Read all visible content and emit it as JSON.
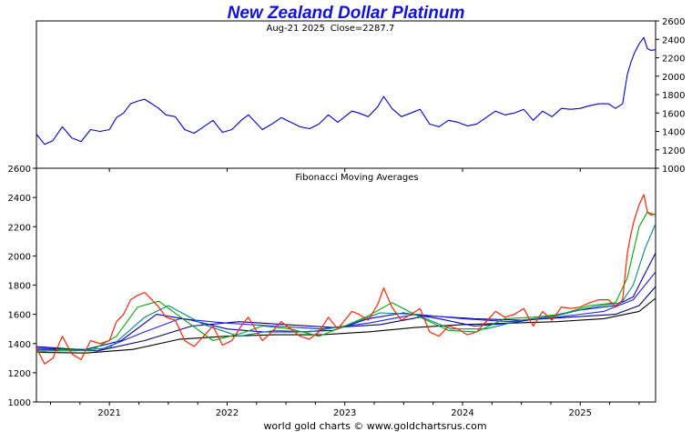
{
  "chart_data": [
    {
      "type": "line",
      "title": "New Zealand Dollar Platinum",
      "subtitle_date": "Aug-21  2025",
      "subtitle_close": "Close=2287.7",
      "x_ticks": [
        "2021",
        "2022",
        "2023",
        "2024",
        "2025"
      ],
      "x_range": [
        2020.38,
        2025.64
      ],
      "ylim": [
        1000,
        2600
      ],
      "yticks": [
        1000,
        1200,
        1400,
        1600,
        1800,
        2000,
        2200,
        2400,
        2600
      ],
      "y_axis_side": "right",
      "grid": false,
      "series": [
        {
          "color": "#0000dd",
          "x": [
            2020.38,
            2020.45,
            2020.52,
            2020.6,
            2020.68,
            2020.76,
            2020.84,
            2020.92,
            2021.0,
            2021.06,
            2021.12,
            2021.18,
            2021.24,
            2021.3,
            2021.36,
            2021.42,
            2021.48,
            2021.56,
            2021.64,
            2021.72,
            2021.8,
            2021.88,
            2021.96,
            2022.04,
            2022.12,
            2022.18,
            2022.24,
            2022.3,
            2022.38,
            2022.46,
            2022.54,
            2022.62,
            2022.7,
            2022.78,
            2022.86,
            2022.94,
            2023.0,
            2023.06,
            2023.12,
            2023.2,
            2023.28,
            2023.33,
            2023.4,
            2023.48,
            2023.56,
            2023.64,
            2023.72,
            2023.8,
            2023.88,
            2023.96,
            2024.04,
            2024.12,
            2024.2,
            2024.28,
            2024.36,
            2024.44,
            2024.52,
            2024.6,
            2024.68,
            2024.76,
            2024.84,
            2024.92,
            2025.0,
            2025.08,
            2025.16,
            2025.24,
            2025.3,
            2025.36,
            2025.4,
            2025.43,
            2025.46,
            2025.5,
            2025.54,
            2025.57,
            2025.6,
            2025.64
          ],
          "values": [
            1370,
            1260,
            1300,
            1450,
            1330,
            1290,
            1420,
            1400,
            1420,
            1550,
            1600,
            1700,
            1730,
            1750,
            1700,
            1650,
            1580,
            1560,
            1420,
            1380,
            1450,
            1520,
            1390,
            1420,
            1520,
            1580,
            1500,
            1420,
            1480,
            1550,
            1500,
            1450,
            1430,
            1480,
            1580,
            1500,
            1560,
            1620,
            1600,
            1560,
            1670,
            1780,
            1650,
            1560,
            1600,
            1640,
            1480,
            1450,
            1520,
            1500,
            1460,
            1480,
            1550,
            1620,
            1580,
            1600,
            1640,
            1520,
            1620,
            1560,
            1650,
            1640,
            1650,
            1680,
            1700,
            1700,
            1650,
            1700,
            2020,
            2150,
            2250,
            2350,
            2420,
            2300,
            2280,
            2288
          ]
        }
      ]
    },
    {
      "type": "line",
      "title": "Fibonacci Moving Averages",
      "ylim": [
        1000,
        2600
      ],
      "yticks": [
        1000,
        1200,
        1400,
        1600,
        1800,
        2000,
        2200,
        2400,
        2600
      ],
      "y_axis_side": "left",
      "x_ticks": [
        "2021",
        "2022",
        "2023",
        "2024",
        "2025"
      ],
      "grid": false,
      "series": [
        {
          "color": "#ff2200",
          "x": [
            2020.38,
            2020.45,
            2020.52,
            2020.6,
            2020.68,
            2020.76,
            2020.84,
            2020.92,
            2021.0,
            2021.06,
            2021.12,
            2021.18,
            2021.24,
            2021.3,
            2021.36,
            2021.42,
            2021.48,
            2021.56,
            2021.64,
            2021.72,
            2021.8,
            2021.88,
            2021.96,
            2022.04,
            2022.12,
            2022.18,
            2022.24,
            2022.3,
            2022.38,
            2022.46,
            2022.54,
            2022.62,
            2022.7,
            2022.78,
            2022.86,
            2022.94,
            2023.0,
            2023.06,
            2023.12,
            2023.2,
            2023.28,
            2023.33,
            2023.4,
            2023.48,
            2023.56,
            2023.64,
            2023.72,
            2023.8,
            2023.88,
            2023.96,
            2024.04,
            2024.12,
            2024.2,
            2024.28,
            2024.36,
            2024.44,
            2024.52,
            2024.6,
            2024.68,
            2024.76,
            2024.84,
            2024.92,
            2025.0,
            2025.08,
            2025.16,
            2025.24,
            2025.3,
            2025.36,
            2025.4,
            2025.43,
            2025.46,
            2025.5,
            2025.54,
            2025.57,
            2025.6,
            2025.64
          ],
          "values": [
            1370,
            1260,
            1300,
            1450,
            1330,
            1290,
            1420,
            1400,
            1420,
            1550,
            1600,
            1700,
            1730,
            1750,
            1700,
            1650,
            1580,
            1560,
            1420,
            1380,
            1450,
            1520,
            1390,
            1420,
            1520,
            1580,
            1500,
            1420,
            1480,
            1550,
            1500,
            1450,
            1430,
            1480,
            1580,
            1500,
            1560,
            1620,
            1600,
            1560,
            1670,
            1780,
            1650,
            1560,
            1600,
            1640,
            1480,
            1450,
            1520,
            1500,
            1460,
            1480,
            1550,
            1620,
            1580,
            1600,
            1640,
            1520,
            1620,
            1560,
            1650,
            1640,
            1650,
            1680,
            1700,
            1700,
            1650,
            1700,
            2020,
            2150,
            2250,
            2350,
            2420,
            2300,
            2280,
            2288
          ]
        },
        {
          "color": "#00aa00",
          "x": [
            2020.38,
            2020.6,
            2020.84,
            2021.06,
            2021.24,
            2021.42,
            2021.64,
            2021.88,
            2022.12,
            2022.3,
            2022.54,
            2022.78,
            2023.0,
            2023.2,
            2023.4,
            2023.64,
            2023.88,
            2024.12,
            2024.36,
            2024.6,
            2024.84,
            2025.08,
            2025.3,
            2025.4,
            2025.5,
            2025.57,
            2025.64
          ],
          "values": [
            1340,
            1360,
            1350,
            1450,
            1650,
            1690,
            1560,
            1420,
            1470,
            1520,
            1500,
            1450,
            1520,
            1590,
            1680,
            1580,
            1490,
            1480,
            1570,
            1580,
            1600,
            1660,
            1680,
            1850,
            2200,
            2300,
            2280
          ]
        },
        {
          "color": "#008888",
          "x": [
            2020.38,
            2020.7,
            2021.0,
            2021.3,
            2021.5,
            2021.8,
            2022.1,
            2022.4,
            2022.7,
            2023.0,
            2023.3,
            2023.6,
            2023.9,
            2024.2,
            2024.5,
            2024.8,
            2025.1,
            2025.35,
            2025.45,
            2025.55,
            2025.64
          ],
          "values": [
            1350,
            1350,
            1370,
            1580,
            1660,
            1530,
            1450,
            1490,
            1480,
            1520,
            1610,
            1600,
            1500,
            1500,
            1560,
            1590,
            1650,
            1680,
            1800,
            2050,
            2220
          ]
        },
        {
          "color": "#0000cc",
          "x": [
            2020.38,
            2020.8,
            2021.1,
            2021.4,
            2021.7,
            2022.0,
            2022.3,
            2022.6,
            2022.9,
            2023.2,
            2023.5,
            2023.8,
            2024.1,
            2024.4,
            2024.7,
            2025.0,
            2025.3,
            2025.45,
            2025.55,
            2025.64
          ],
          "values": [
            1360,
            1360,
            1420,
            1600,
            1560,
            1500,
            1480,
            1480,
            1490,
            1570,
            1610,
            1570,
            1520,
            1540,
            1580,
            1630,
            1660,
            1720,
            1880,
            2020
          ]
        },
        {
          "color": "#2222ee",
          "x": [
            2020.38,
            2020.9,
            2021.3,
            2021.6,
            2022.0,
            2022.4,
            2022.8,
            2023.2,
            2023.6,
            2024.0,
            2024.4,
            2024.8,
            2025.2,
            2025.45,
            2025.64
          ],
          "values": [
            1370,
            1350,
            1480,
            1570,
            1540,
            1520,
            1500,
            1540,
            1600,
            1570,
            1550,
            1580,
            1620,
            1700,
            1890
          ]
        },
        {
          "color": "#000088",
          "x": [
            2020.38,
            2020.9,
            2021.3,
            2021.7,
            2022.1,
            2022.5,
            2022.9,
            2023.3,
            2023.7,
            2024.1,
            2024.5,
            2024.9,
            2025.3,
            2025.5,
            2025.64
          ],
          "values": [
            1380,
            1350,
            1420,
            1520,
            1550,
            1530,
            1510,
            1530,
            1590,
            1570,
            1560,
            1580,
            1600,
            1660,
            1790
          ]
        },
        {
          "color": "#000000",
          "x": [
            2020.38,
            2020.8,
            2021.2,
            2021.6,
            2022.0,
            2022.4,
            2022.8,
            2023.2,
            2023.6,
            2024.0,
            2024.4,
            2024.8,
            2025.2,
            2025.5,
            2025.64
          ],
          "values": [
            1340,
            1335,
            1360,
            1430,
            1450,
            1460,
            1460,
            1480,
            1510,
            1530,
            1540,
            1550,
            1570,
            1620,
            1710
          ]
        }
      ]
    }
  ],
  "footer": "world gold charts © www.goldchartsrus.com"
}
